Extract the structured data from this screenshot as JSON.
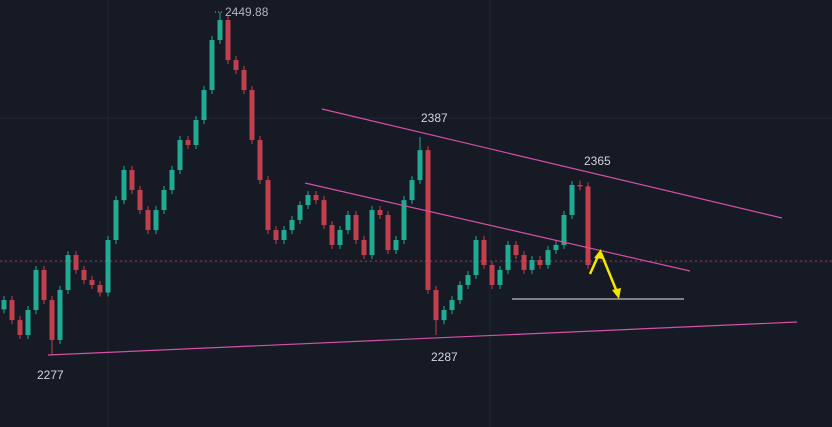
{
  "chart_data": {
    "type": "candlestick",
    "annotations": [
      "2449.88",
      "2387",
      "2365",
      "2287",
      "2277"
    ],
    "up_color": "#22ab94",
    "down_color": "#c2404e",
    "ylim": [
      2240.7,
      2456
    ],
    "ohlc": [
      [
        2300.0,
        2306.7,
        2298.0,
        2304.7
      ],
      [
        2304.7,
        2306.7,
        2292.6,
        2294.6
      ],
      [
        2294.6,
        2296.6,
        2285.1,
        2287.1
      ],
      [
        2287.1,
        2301.7,
        2285.1,
        2299.7
      ],
      [
        2299.7,
        2321.9,
        2297.7,
        2319.9
      ],
      [
        2319.9,
        2321.9,
        2302.7,
        2304.7
      ],
      [
        2304.7,
        2306.7,
        2277.0,
        2284.6
      ],
      [
        2284.6,
        2311.8,
        2282.6,
        2309.8
      ],
      [
        2309.8,
        2329.4,
        2307.8,
        2327.4
      ],
      [
        2327.4,
        2329.4,
        2317.9,
        2319.9
      ],
      [
        2319.9,
        2321.9,
        2312.8,
        2314.8
      ],
      [
        2314.8,
        2316.8,
        2310.3,
        2312.3
      ],
      [
        2312.3,
        2314.3,
        2306.5,
        2308.5
      ],
      [
        2308.5,
        2337.0,
        2306.5,
        2335.0
      ],
      [
        2335.0,
        2357.1,
        2333.0,
        2355.1
      ],
      [
        2355.1,
        2372.3,
        2353.1,
        2370.3
      ],
      [
        2370.3,
        2372.3,
        2358.2,
        2360.2
      ],
      [
        2360.2,
        2362.2,
        2348.1,
        2350.1
      ],
      [
        2350.1,
        2352.1,
        2338.0,
        2340.0
      ],
      [
        2340.0,
        2352.1,
        2338.0,
        2350.1
      ],
      [
        2350.1,
        2362.2,
        2348.1,
        2360.2
      ],
      [
        2360.2,
        2372.3,
        2358.2,
        2370.3
      ],
      [
        2370.3,
        2387.4,
        2368.3,
        2385.4
      ],
      [
        2385.4,
        2387.4,
        2380.9,
        2382.9
      ],
      [
        2382.9,
        2397.5,
        2380.9,
        2395.5
      ],
      [
        2395.5,
        2412.6,
        2393.5,
        2410.6
      ],
      [
        2410.6,
        2437.8,
        2408.6,
        2435.8
      ],
      [
        2435.8,
        2449.88,
        2433.8,
        2445.9
      ],
      [
        2445.9,
        2447.9,
        2423.7,
        2425.7
      ],
      [
        2425.7,
        2427.7,
        2418.7,
        2420.7
      ],
      [
        2420.7,
        2422.7,
        2408.6,
        2410.6
      ],
      [
        2410.6,
        2412.6,
        2383.4,
        2385.4
      ],
      [
        2385.4,
        2387.4,
        2363.2,
        2365.2
      ],
      [
        2365.2,
        2367.2,
        2338.0,
        2340.0
      ],
      [
        2340.0,
        2342.0,
        2333.0,
        2335.0
      ],
      [
        2335.0,
        2342.0,
        2333.0,
        2340.0
      ],
      [
        2340.0,
        2347.1,
        2338.0,
        2345.1
      ],
      [
        2345.1,
        2354.6,
        2343.1,
        2352.6
      ],
      [
        2352.6,
        2359.7,
        2350.6,
        2357.7
      ],
      [
        2357.7,
        2359.7,
        2353.1,
        2355.1
      ],
      [
        2355.1,
        2357.1,
        2340.5,
        2342.5
      ],
      [
        2342.5,
        2344.5,
        2330.5,
        2332.5
      ],
      [
        2332.5,
        2342.0,
        2330.5,
        2340.0
      ],
      [
        2340.0,
        2349.6,
        2338.0,
        2347.6
      ],
      [
        2347.6,
        2349.6,
        2333.0,
        2335.0
      ],
      [
        2335.0,
        2337.0,
        2325.4,
        2327.4
      ],
      [
        2327.4,
        2352.1,
        2325.4,
        2350.1
      ],
      [
        2350.1,
        2352.1,
        2345.6,
        2347.6
      ],
      [
        2347.6,
        2349.6,
        2327.9,
        2329.9
      ],
      [
        2329.9,
        2337.0,
        2327.9,
        2335.0
      ],
      [
        2335.0,
        2357.1,
        2333.0,
        2355.1
      ],
      [
        2355.1,
        2367.2,
        2353.1,
        2365.2
      ],
      [
        2365.2,
        2387.0,
        2363.2,
        2380.3
      ],
      [
        2380.3,
        2382.3,
        2307.8,
        2309.8
      ],
      [
        2309.8,
        2311.8,
        2287.0,
        2294.6
      ],
      [
        2294.6,
        2301.7,
        2292.6,
        2299.7
      ],
      [
        2299.7,
        2306.7,
        2297.7,
        2304.7
      ],
      [
        2304.7,
        2314.3,
        2302.7,
        2312.3
      ],
      [
        2312.3,
        2319.3,
        2310.3,
        2317.3
      ],
      [
        2317.3,
        2337.0,
        2315.3,
        2335.0
      ],
      [
        2335.0,
        2337.0,
        2320.4,
        2322.4
      ],
      [
        2322.4,
        2324.4,
        2310.3,
        2312.3
      ],
      [
        2312.3,
        2321.9,
        2310.3,
        2319.9
      ],
      [
        2319.9,
        2334.5,
        2317.9,
        2332.5
      ],
      [
        2332.5,
        2334.5,
        2325.4,
        2327.4
      ],
      [
        2327.4,
        2329.4,
        2317.9,
        2319.9
      ],
      [
        2319.9,
        2326.9,
        2317.9,
        2324.9
      ],
      [
        2324.9,
        2326.9,
        2320.4,
        2322.4
      ],
      [
        2322.4,
        2331.9,
        2320.4,
        2329.9
      ],
      [
        2329.9,
        2334.5,
        2327.9,
        2332.5
      ],
      [
        2332.5,
        2349.6,
        2330.5,
        2347.6
      ],
      [
        2347.6,
        2364.7,
        2345.6,
        2362.7
      ],
      [
        2362.7,
        2365.0,
        2360.0,
        2362.0
      ],
      [
        2362.0,
        2364.0,
        2320.4,
        2322.4
      ]
    ]
  }
}
